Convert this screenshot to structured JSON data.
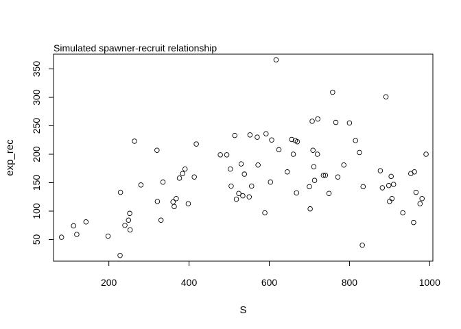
{
  "chart_data": {
    "type": "scatter",
    "title": "Simulated spawner-recruit relationship",
    "xlabel": "S",
    "ylabel": "exp_rec",
    "xlim": [
      62,
      1008
    ],
    "ylim": [
      12,
      376
    ],
    "xticks": [
      200,
      400,
      600,
      800,
      1000
    ],
    "yticks": [
      50,
      100,
      150,
      200,
      250,
      300,
      350
    ],
    "grid": false,
    "legend": "none",
    "marker": "open-circle",
    "points": [
      [
        82,
        54
      ],
      [
        112,
        74
      ],
      [
        120,
        59
      ],
      [
        143,
        81
      ],
      [
        198,
        56
      ],
      [
        228,
        22
      ],
      [
        229,
        133
      ],
      [
        240,
        75
      ],
      [
        249,
        84
      ],
      [
        252,
        96
      ],
      [
        253,
        67
      ],
      [
        264,
        223
      ],
      [
        280,
        146
      ],
      [
        320,
        207
      ],
      [
        321,
        117
      ],
      [
        330,
        84
      ],
      [
        335,
        151
      ],
      [
        360,
        116
      ],
      [
        363,
        108
      ],
      [
        368,
        122
      ],
      [
        376,
        158
      ],
      [
        384,
        166
      ],
      [
        390,
        174
      ],
      [
        398,
        113
      ],
      [
        413,
        160
      ],
      [
        418,
        218
      ],
      [
        478,
        199
      ],
      [
        494,
        199
      ],
      [
        503,
        174
      ],
      [
        505,
        144
      ],
      [
        514,
        233
      ],
      [
        518,
        121
      ],
      [
        524,
        131
      ],
      [
        530,
        183
      ],
      [
        534,
        127
      ],
      [
        538,
        165
      ],
      [
        550,
        125
      ],
      [
        552,
        234
      ],
      [
        556,
        144
      ],
      [
        570,
        230
      ],
      [
        572,
        181
      ],
      [
        589,
        97
      ],
      [
        592,
        236
      ],
      [
        603,
        151
      ],
      [
        606,
        225
      ],
      [
        617,
        366
      ],
      [
        624,
        208
      ],
      [
        645,
        169
      ],
      [
        656,
        226
      ],
      [
        660,
        200
      ],
      [
        665,
        224
      ],
      [
        668,
        132
      ],
      [
        670,
        222
      ],
      [
        700,
        143
      ],
      [
        702,
        104
      ],
      [
        707,
        258
      ],
      [
        709,
        207
      ],
      [
        711,
        178
      ],
      [
        713,
        154
      ],
      [
        720,
        200
      ],
      [
        721,
        262
      ],
      [
        735,
        163
      ],
      [
        740,
        163
      ],
      [
        749,
        131
      ],
      [
        758,
        309
      ],
      [
        766,
        256
      ],
      [
        771,
        160
      ],
      [
        786,
        181
      ],
      [
        800,
        255
      ],
      [
        815,
        224
      ],
      [
        825,
        203
      ],
      [
        832,
        40
      ],
      [
        834,
        143
      ],
      [
        877,
        171
      ],
      [
        882,
        141
      ],
      [
        891,
        301
      ],
      [
        898,
        145
      ],
      [
        900,
        117
      ],
      [
        904,
        161
      ],
      [
        906,
        122
      ],
      [
        910,
        147
      ],
      [
        933,
        97
      ],
      [
        953,
        166
      ],
      [
        960,
        80
      ],
      [
        962,
        169
      ],
      [
        966,
        133
      ],
      [
        976,
        113
      ],
      [
        981,
        122
      ],
      [
        991,
        200
      ]
    ]
  }
}
